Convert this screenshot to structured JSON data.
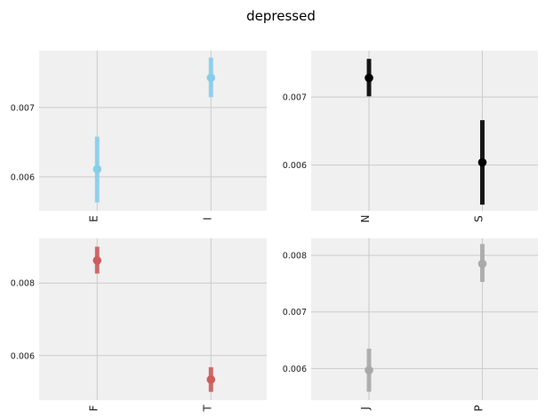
{
  "figure": {
    "title": "depressed"
  },
  "chart_data": [
    {
      "type": "scatter",
      "title": "",
      "categories": [
        "E",
        "I"
      ],
      "values": [
        0.00611,
        0.00743
      ],
      "error_low": [
        0.00563,
        0.00715
      ],
      "error_high": [
        0.00658,
        0.00772
      ],
      "ylim": [
        0.00551,
        0.00782
      ],
      "yticks": [
        0.006,
        0.007
      ],
      "ytick_labels": [
        "0.006",
        "0.007"
      ],
      "color": "#87ceeb",
      "grid": true,
      "xlabel": "",
      "ylabel": ""
    },
    {
      "type": "scatter",
      "title": "",
      "categories": [
        "N",
        "S"
      ],
      "values": [
        0.00728,
        0.00604
      ],
      "error_low": [
        0.00701,
        0.00542
      ],
      "error_high": [
        0.00756,
        0.00666
      ],
      "ylim": [
        0.00533,
        0.00768
      ],
      "yticks": [
        0.006,
        0.007
      ],
      "ytick_labels": [
        "0.006",
        "0.007"
      ],
      "color": "#000000",
      "grid": true,
      "xlabel": "",
      "ylabel": ""
    },
    {
      "type": "scatter",
      "title": "",
      "categories": [
        "F",
        "T"
      ],
      "values": [
        0.00862,
        0.00534
      ],
      "error_low": [
        0.00826,
        0.005
      ],
      "error_high": [
        0.009,
        0.00568
      ],
      "ylim": [
        0.00477,
        0.00923
      ],
      "yticks": [
        0.006,
        0.008
      ],
      "ytick_labels": [
        "0.006",
        "0.008"
      ],
      "color": "#cd5c5c",
      "grid": true,
      "xlabel": "",
      "ylabel": ""
    },
    {
      "type": "scatter",
      "title": "",
      "categories": [
        "J",
        "P"
      ],
      "values": [
        0.00597,
        0.00785
      ],
      "error_low": [
        0.00559,
        0.00753
      ],
      "error_high": [
        0.00635,
        0.0082
      ],
      "ylim": [
        0.00544,
        0.0083
      ],
      "yticks": [
        0.006,
        0.007,
        0.008
      ],
      "ytick_labels": [
        "0.006",
        "0.007",
        "0.008"
      ],
      "color": "#a9a9a9",
      "grid": true,
      "xlabel": "",
      "ylabel": ""
    }
  ]
}
